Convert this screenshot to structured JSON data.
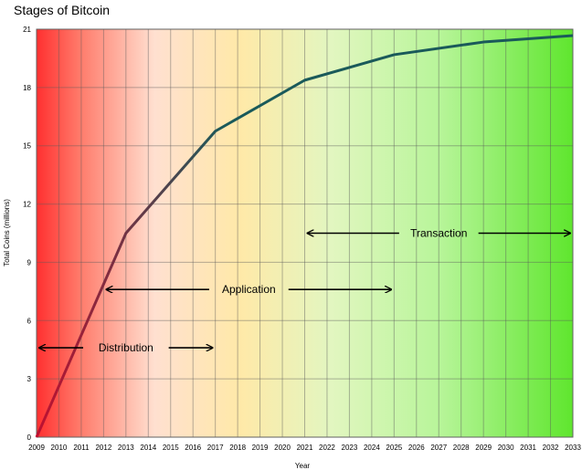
{
  "chart_data": {
    "type": "line",
    "title": "Stages of Bitcoin",
    "xlabel": "Year",
    "ylabel": "Total Coins (millions)",
    "xlim": [
      2009,
      2033
    ],
    "ylim": [
      0,
      21
    ],
    "x_ticks": [
      "2009",
      "2010",
      "2011",
      "2012",
      "2013",
      "2014",
      "2015",
      "2016",
      "2017",
      "2018",
      "2019",
      "2020",
      "2021",
      "2022",
      "2023",
      "2024",
      "2025",
      "2026",
      "2027",
      "2028",
      "2029",
      "2030",
      "2031",
      "2032",
      "2033"
    ],
    "y_ticks": [
      0,
      3,
      6,
      9,
      12,
      15,
      18,
      21
    ],
    "grid": true,
    "series": [
      {
        "x": [
          2009,
          2013,
          2017,
          2021,
          2025,
          2029,
          2033
        ],
        "y": [
          0,
          10.5,
          15.75,
          18.375,
          19.6875,
          20.34,
          20.67
        ]
      }
    ],
    "annotations": [
      {
        "label": "Distribution",
        "x_start": 2009,
        "x_end": 2017,
        "y": 4.6
      },
      {
        "label": "Application",
        "x_start": 2012,
        "x_end": 2025,
        "y": 7.6
      },
      {
        "label": "Transaction",
        "x_start": 2021,
        "x_end": 2033,
        "y": 10.5
      }
    ],
    "colors": {
      "background_start": "#ff3030",
      "background_mid": "#ffe9a8",
      "background_end": "#5fe62e",
      "line_start": "#c01030",
      "line_end": "#1a5a5a"
    }
  }
}
